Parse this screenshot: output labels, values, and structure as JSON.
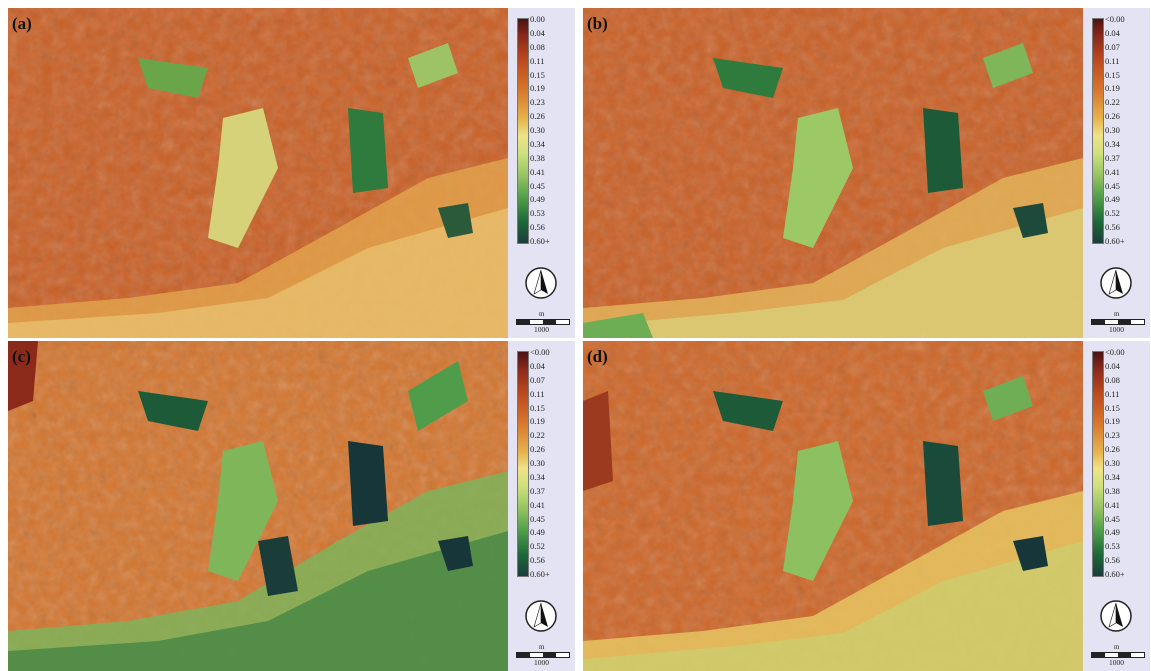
{
  "panels": [
    {
      "id": "a",
      "label": "(a)",
      "legend": [
        "0.00",
        "0.04",
        "0.08",
        "0.11",
        "0.15",
        "0.19",
        "0.23",
        "0.26",
        "0.30",
        "0.34",
        "0.38",
        "0.41",
        "0.45",
        "0.49",
        "0.53",
        "0.56",
        "0.60+"
      ]
    },
    {
      "id": "b",
      "label": "(b)",
      "legend": [
        "<0.00",
        "0.04",
        "0.07",
        "0.11",
        "0.15",
        "0.19",
        "0.22",
        "0.26",
        "0.30",
        "0.34",
        "0.37",
        "0.41",
        "0.45",
        "0.49",
        "0.52",
        "0.56",
        "0.60+"
      ]
    },
    {
      "id": "c",
      "label": "(c)",
      "legend": [
        "<0.00",
        "0.04",
        "0.07",
        "0.11",
        "0.15",
        "0.19",
        "0.22",
        "0.26",
        "0.30",
        "0.34",
        "0.37",
        "0.41",
        "0.45",
        "0.49",
        "0.52",
        "0.56",
        "0.60+"
      ]
    },
    {
      "id": "d",
      "label": "(d)",
      "legend": [
        "<0.00",
        "0.04",
        "0.08",
        "0.11",
        "0.15",
        "0.19",
        "0.23",
        "0.26",
        "0.30",
        "0.34",
        "0.38",
        "0.41",
        "0.45",
        "0.49",
        "0.53",
        "0.56",
        "0.60+"
      ]
    }
  ],
  "scale": {
    "unit": "m",
    "value": "1000"
  },
  "colors": {
    "low": "#4a1414",
    "orange": "#d7782e",
    "mid": "#eee38a",
    "green": "#4f9d4a",
    "high": "#1a3d3a",
    "panel_background": "#e4e3f3"
  }
}
